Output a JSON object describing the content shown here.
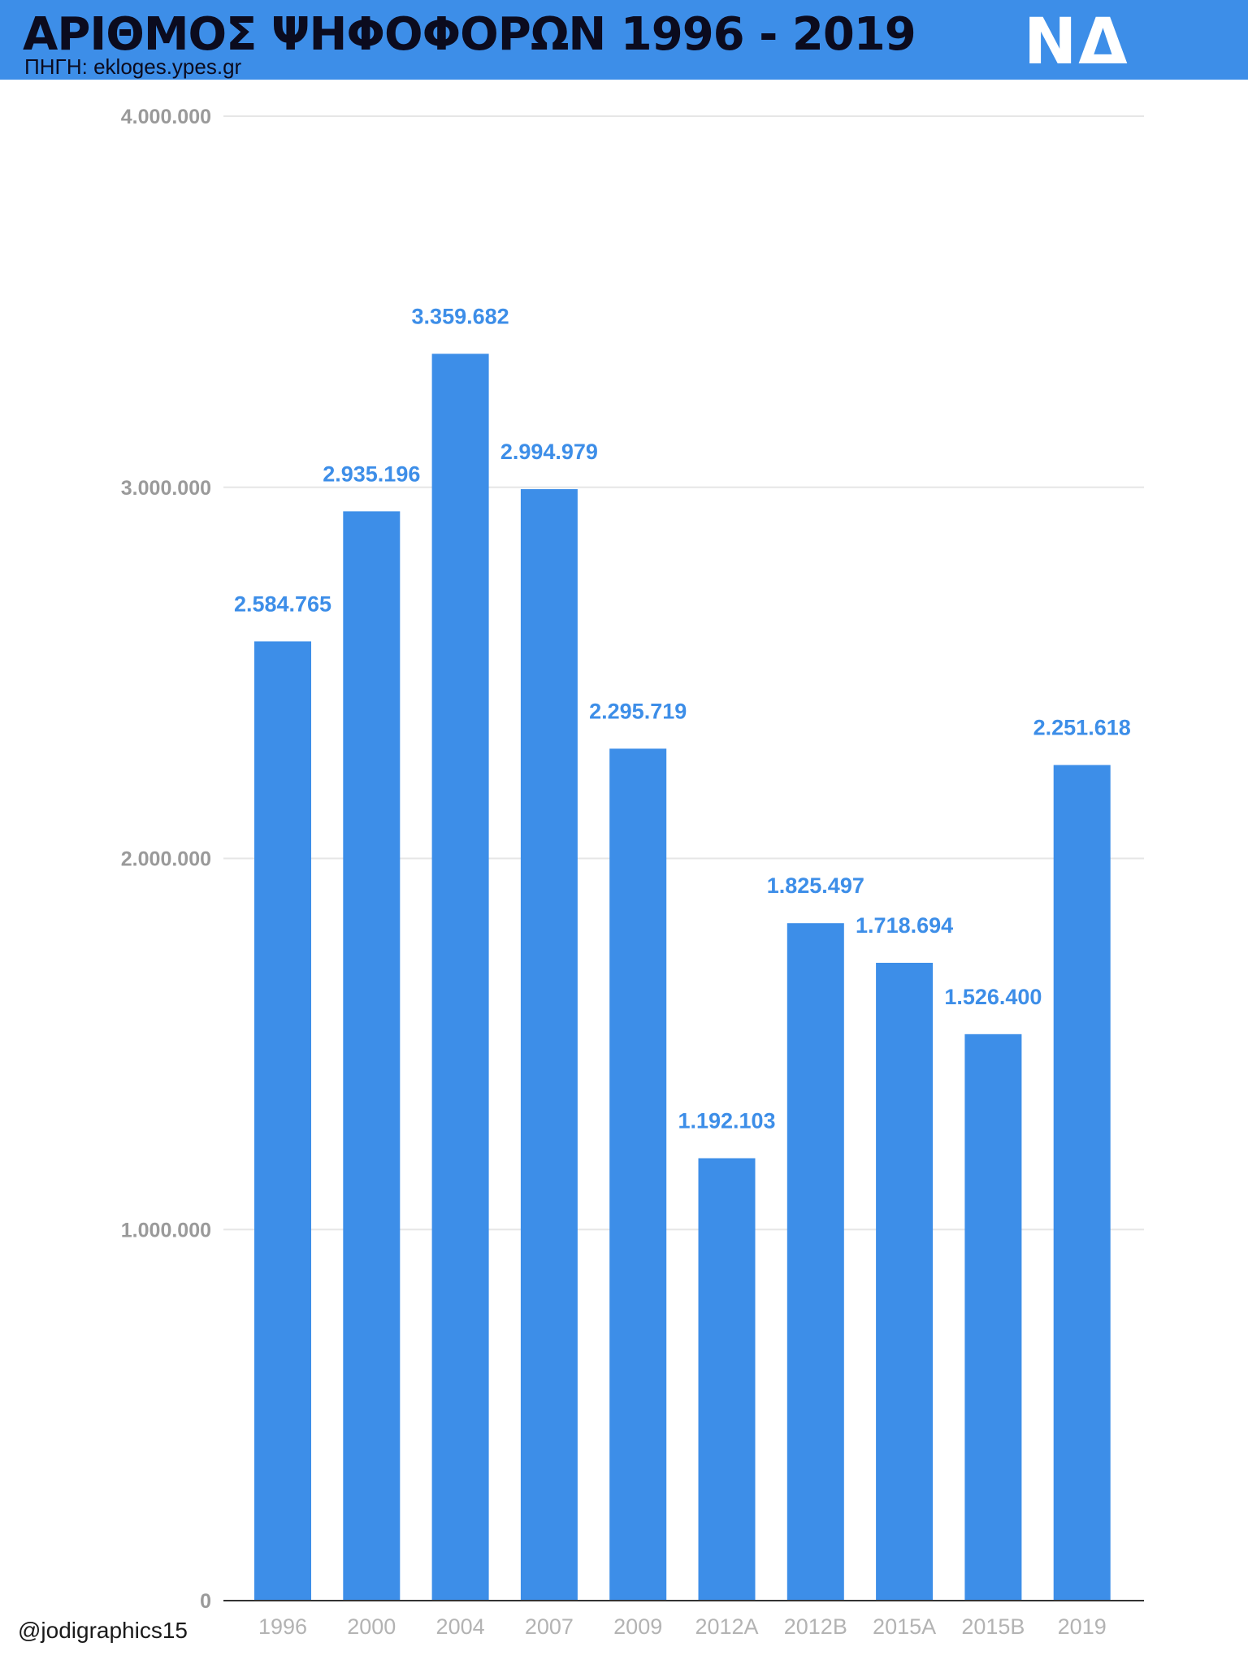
{
  "header": {
    "title": "ΑΡΙΘΜΟΣ ΨΗΦΟΦΟΡΩΝ 1996 - 2019",
    "source": "ΠΗΓΗ: ekloges.ypes.gr",
    "logo_text": "ΝΔ",
    "background": "#3d8ee8"
  },
  "footer": {
    "credit": "@jodigraphics15"
  },
  "chart_data": {
    "type": "bar",
    "title": "ΑΡΙΘΜΟΣ ΨΗΦΟΦΟΡΩΝ 1996 - 2019",
    "xlabel": "",
    "ylabel": "",
    "categories": [
      "1996",
      "2000",
      "2004",
      "2007",
      "2009",
      "2012Α",
      "2012Β",
      "2015Α",
      "2015Β",
      "2019"
    ],
    "values": [
      2584765,
      2935196,
      3359682,
      2994979,
      2295719,
      1192103,
      1825497,
      1718694,
      1526400,
      2251618
    ],
    "data_labels": [
      "2.584.765",
      "2.935.196",
      "3.359.682",
      "2.994.979",
      "2.295.719",
      "1.192.103",
      "1.825.497",
      "1.718.694",
      "1.526.400",
      "2.251.618"
    ],
    "ylim": [
      0,
      4000000
    ],
    "yticks": [
      0,
      1000000,
      2000000,
      3000000,
      4000000
    ],
    "ytick_labels": [
      "0",
      "1.000.000",
      "2.000.000",
      "3.000.000",
      "4.000.000"
    ],
    "grid": true,
    "legend": "none",
    "bar_color": "#3d8ee8"
  }
}
